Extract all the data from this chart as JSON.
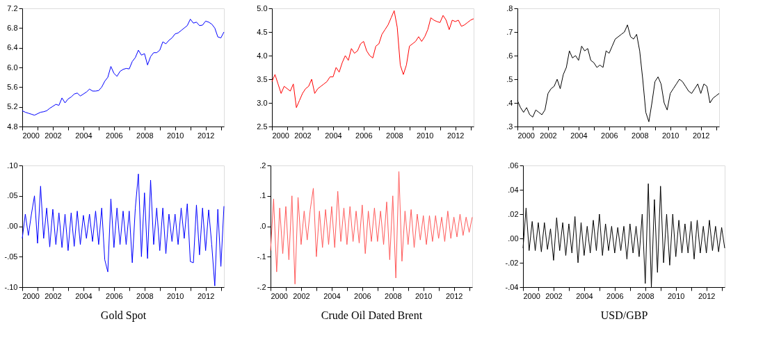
{
  "chart_data": [
    {
      "type": "line",
      "x": [
        2000.0,
        2000.2,
        2000.4,
        2000.6,
        2000.8,
        2001.0,
        2001.2,
        2001.4,
        2001.6,
        2001.8,
        2002.0,
        2002.2,
        2002.4,
        2002.6,
        2002.8,
        2003.0,
        2003.2,
        2003.4,
        2003.6,
        2003.8,
        2004.0,
        2004.2,
        2004.4,
        2004.6,
        2004.8,
        2005.0,
        2005.2,
        2005.4,
        2005.6,
        2005.8,
        2006.0,
        2006.2,
        2006.4,
        2006.6,
        2006.8,
        2007.0,
        2007.2,
        2007.4,
        2007.6,
        2007.8,
        2008.0,
        2008.2,
        2008.4,
        2008.6,
        2008.8,
        2009.0,
        2009.2,
        2009.4,
        2009.6,
        2009.8,
        2010.0,
        2010.2,
        2010.4,
        2010.6,
        2010.8,
        2011.0,
        2011.2,
        2011.4,
        2011.6,
        2011.8,
        2012.0,
        2012.2,
        2012.4,
        2012.6,
        2012.8,
        2013.0,
        2013.2
      ],
      "series": [
        {
          "color": "#0000ff",
          "values": [
            5.12,
            5.09,
            5.07,
            5.05,
            5.03,
            5.06,
            5.09,
            5.1,
            5.12,
            5.17,
            5.21,
            5.25,
            5.23,
            5.38,
            5.28,
            5.36,
            5.4,
            5.46,
            5.48,
            5.42,
            5.46,
            5.5,
            5.56,
            5.52,
            5.52,
            5.53,
            5.6,
            5.72,
            5.8,
            6.02,
            5.88,
            5.82,
            5.92,
            5.96,
            5.98,
            5.97,
            6.12,
            6.2,
            6.35,
            6.25,
            6.28,
            6.05,
            6.22,
            6.3,
            6.3,
            6.35,
            6.52,
            6.48,
            6.55,
            6.6,
            6.68,
            6.7,
            6.75,
            6.8,
            6.85,
            6.98,
            6.9,
            6.92,
            6.85,
            6.86,
            6.94,
            6.92,
            6.88,
            6.8,
            6.62,
            6.6,
            6.72
          ]
        }
      ],
      "xlim": [
        2000,
        2013.2
      ],
      "xticks": [
        2000,
        {
          "value": 2001,
          "label": null
        },
        2002,
        {
          "value": 2003,
          "label": null
        },
        2004,
        {
          "value": 2005,
          "label": null
        },
        2006,
        {
          "value": 2007,
          "label": null
        },
        2008,
        {
          "value": 2009,
          "label": null
        },
        2010,
        {
          "value": 2011,
          "label": null
        },
        2012,
        {
          "value": 2013,
          "label": null
        }
      ],
      "ylim": [
        4.8,
        7.2
      ],
      "yticks": [
        4.8,
        5.2,
        5.6,
        {
          "value": 6,
          "label": "6.0"
        },
        6.4,
        6.8,
        7.2
      ],
      "grid": false
    },
    {
      "type": "line",
      "x": [
        2000.0,
        2000.2,
        2000.4,
        2000.6,
        2000.8,
        2001.0,
        2001.2,
        2001.4,
        2001.6,
        2001.8,
        2002.0,
        2002.2,
        2002.4,
        2002.6,
        2002.8,
        2003.0,
        2003.2,
        2003.4,
        2003.6,
        2003.8,
        2004.0,
        2004.2,
        2004.4,
        2004.6,
        2004.8,
        2005.0,
        2005.2,
        2005.4,
        2005.6,
        2005.8,
        2006.0,
        2006.2,
        2006.4,
        2006.6,
        2006.8,
        2007.0,
        2007.2,
        2007.4,
        2007.6,
        2007.8,
        2008.0,
        2008.2,
        2008.4,
        2008.6,
        2008.8,
        2009.0,
        2009.2,
        2009.4,
        2009.6,
        2009.8,
        2010.0,
        2010.2,
        2010.4,
        2010.6,
        2010.8,
        2011.0,
        2011.2,
        2011.4,
        2011.6,
        2011.8,
        2012.0,
        2012.2,
        2012.4,
        2012.6,
        2012.8,
        2013.0,
        2013.2
      ],
      "series": [
        {
          "color": "#ff0000",
          "values": [
            3.45,
            3.6,
            3.4,
            3.2,
            3.35,
            3.3,
            3.25,
            3.4,
            2.9,
            3.05,
            3.2,
            3.3,
            3.35,
            3.5,
            3.2,
            3.3,
            3.35,
            3.4,
            3.45,
            3.55,
            3.55,
            3.75,
            3.65,
            3.85,
            4.0,
            3.9,
            4.15,
            4.05,
            4.1,
            4.25,
            4.3,
            4.1,
            4.0,
            3.95,
            4.2,
            4.25,
            4.45,
            4.55,
            4.65,
            4.8,
            4.95,
            4.6,
            3.8,
            3.6,
            3.8,
            4.2,
            4.25,
            4.3,
            4.4,
            4.3,
            4.4,
            4.55,
            4.8,
            4.75,
            4.72,
            4.7,
            4.85,
            4.75,
            4.55,
            4.75,
            4.72,
            4.75,
            4.62,
            4.65,
            4.7,
            4.75,
            4.78
          ]
        }
      ],
      "xlim": [
        2000,
        2013.2
      ],
      "xticks": [
        2000,
        {
          "value": 2001,
          "label": null
        },
        2002,
        {
          "value": 2003,
          "label": null
        },
        2004,
        {
          "value": 2005,
          "label": null
        },
        2006,
        {
          "value": 2007,
          "label": null
        },
        2008,
        {
          "value": 2009,
          "label": null
        },
        2010,
        {
          "value": 2011,
          "label": null
        },
        2012,
        {
          "value": 2013,
          "label": null
        }
      ],
      "ylim": [
        2.5,
        5.0
      ],
      "yticks": [
        2.5,
        {
          "value": 3,
          "label": "3.0"
        },
        3.5,
        {
          "value": 4,
          "label": "4.0"
        },
        4.5,
        {
          "value": 5,
          "label": "5.0"
        }
      ],
      "grid": false
    },
    {
      "type": "line",
      "x": [
        2000.0,
        2000.2,
        2000.4,
        2000.6,
        2000.8,
        2001.0,
        2001.2,
        2001.4,
        2001.6,
        2001.8,
        2002.0,
        2002.2,
        2002.4,
        2002.6,
        2002.8,
        2003.0,
        2003.2,
        2003.4,
        2003.6,
        2003.8,
        2004.0,
        2004.2,
        2004.4,
        2004.6,
        2004.8,
        2005.0,
        2005.2,
        2005.4,
        2005.6,
        2005.8,
        2006.0,
        2006.2,
        2006.4,
        2006.6,
        2006.8,
        2007.0,
        2007.2,
        2007.4,
        2007.6,
        2007.8,
        2008.0,
        2008.2,
        2008.4,
        2008.6,
        2008.8,
        2009.0,
        2009.2,
        2009.4,
        2009.6,
        2009.8,
        2010.0,
        2010.2,
        2010.4,
        2010.6,
        2010.8,
        2011.0,
        2011.2,
        2011.4,
        2011.6,
        2011.8,
        2012.0,
        2012.2,
        2012.4,
        2012.6,
        2012.8,
        2013.0,
        2013.2
      ],
      "series": [
        {
          "color": "#000000",
          "values": [
            0.41,
            0.38,
            0.36,
            0.38,
            0.35,
            0.34,
            0.37,
            0.36,
            0.35,
            0.37,
            0.44,
            0.46,
            0.47,
            0.5,
            0.46,
            0.52,
            0.55,
            0.62,
            0.59,
            0.6,
            0.58,
            0.64,
            0.62,
            0.63,
            0.58,
            0.57,
            0.55,
            0.56,
            0.55,
            0.62,
            0.61,
            0.64,
            0.67,
            0.68,
            0.69,
            0.7,
            0.73,
            0.68,
            0.67,
            0.69,
            0.62,
            0.5,
            0.36,
            0.32,
            0.4,
            0.49,
            0.51,
            0.48,
            0.4,
            0.37,
            0.44,
            0.46,
            0.48,
            0.5,
            0.49,
            0.47,
            0.45,
            0.44,
            0.46,
            0.48,
            0.44,
            0.48,
            0.47,
            0.4,
            0.42,
            0.43,
            0.44
          ]
        }
      ],
      "xlim": [
        2000,
        2013.2
      ],
      "xticks": [
        2000,
        {
          "value": 2001,
          "label": null
        },
        2002,
        {
          "value": 2003,
          "label": null
        },
        2004,
        {
          "value": 2005,
          "label": null
        },
        2006,
        {
          "value": 2007,
          "label": null
        },
        2008,
        {
          "value": 2009,
          "label": null
        },
        2010,
        {
          "value": 2011,
          "label": null
        },
        2012,
        {
          "value": 2013,
          "label": null
        }
      ],
      "ylim": [
        0.3,
        0.8
      ],
      "yticks": [
        {
          "value": 0.3,
          "label": ".3"
        },
        {
          "value": 0.4,
          "label": ".4"
        },
        {
          "value": 0.5,
          "label": ".5"
        },
        {
          "value": 0.6,
          "label": ".6"
        },
        {
          "value": 0.7,
          "label": ".7"
        },
        {
          "value": 0.8,
          "label": ".8"
        }
      ],
      "grid": false
    },
    {
      "type": "line",
      "xlabel": "Gold Spot",
      "x": [
        2000.0,
        2000.2,
        2000.4,
        2000.6,
        2000.8,
        2001.0,
        2001.2,
        2001.4,
        2001.6,
        2001.8,
        2002.0,
        2002.2,
        2002.4,
        2002.6,
        2002.8,
        2003.0,
        2003.2,
        2003.4,
        2003.6,
        2003.8,
        2004.0,
        2004.2,
        2004.4,
        2004.6,
        2004.8,
        2005.0,
        2005.2,
        2005.4,
        2005.6,
        2005.8,
        2006.0,
        2006.2,
        2006.4,
        2006.6,
        2006.8,
        2007.0,
        2007.2,
        2007.4,
        2007.6,
        2007.8,
        2008.0,
        2008.2,
        2008.4,
        2008.6,
        2008.8,
        2009.0,
        2009.2,
        2009.4,
        2009.6,
        2009.8,
        2010.0,
        2010.2,
        2010.4,
        2010.6,
        2010.8,
        2011.0,
        2011.2,
        2011.4,
        2011.6,
        2011.8,
        2012.0,
        2012.2,
        2012.4,
        2012.6,
        2012.8,
        2013.0,
        2013.2
      ],
      "series": [
        {
          "color": "#0000ff",
          "values": [
            -0.02,
            0.02,
            -0.015,
            0.02,
            0.05,
            -0.028,
            0.066,
            -0.02,
            0.03,
            -0.034,
            0.028,
            -0.03,
            0.022,
            -0.035,
            0.02,
            -0.04,
            0.022,
            -0.033,
            0.025,
            -0.03,
            0.018,
            -0.02,
            0.02,
            -0.025,
            0.025,
            -0.03,
            0.03,
            -0.055,
            -0.075,
            0.045,
            -0.035,
            0.03,
            -0.03,
            0.025,
            -0.03,
            0.025,
            -0.06,
            0.03,
            0.086,
            -0.05,
            0.055,
            -0.053,
            0.076,
            -0.03,
            0.03,
            -0.04,
            0.03,
            -0.045,
            0.02,
            -0.025,
            0.02,
            -0.03,
            0.03,
            -0.02,
            0.037,
            -0.058,
            -0.06,
            0.035,
            -0.047,
            0.03,
            -0.04,
            0.027,
            -0.03,
            -0.098,
            0.028,
            -0.066,
            0.033
          ]
        }
      ],
      "xlim": [
        2000,
        2013.2
      ],
      "xticks": [
        2000,
        {
          "value": 2001,
          "label": null
        },
        2002,
        {
          "value": 2003,
          "label": null
        },
        2004,
        {
          "value": 2005,
          "label": null
        },
        2006,
        {
          "value": 2007,
          "label": null
        },
        2008,
        {
          "value": 2009,
          "label": null
        },
        2010,
        {
          "value": 2011,
          "label": null
        },
        2012,
        {
          "value": 2013,
          "label": null
        }
      ],
      "ylim": [
        -0.1,
        0.1
      ],
      "yticks": [
        {
          "value": -0.1,
          "label": "-.10"
        },
        {
          "value": -0.05,
          "label": "-.05"
        },
        {
          "value": 0,
          "label": ".00"
        },
        {
          "value": 0.05,
          "label": ".05"
        },
        {
          "value": 0.1,
          "label": ".10"
        }
      ],
      "grid": false
    },
    {
      "type": "line",
      "xlabel": "Crude Oil Dated Brent",
      "x": [
        2000.0,
        2000.2,
        2000.4,
        2000.6,
        2000.8,
        2001.0,
        2001.2,
        2001.4,
        2001.6,
        2001.8,
        2002.0,
        2002.2,
        2002.4,
        2002.6,
        2002.8,
        2003.0,
        2003.2,
        2003.4,
        2003.6,
        2003.8,
        2004.0,
        2004.2,
        2004.4,
        2004.6,
        2004.8,
        2005.0,
        2005.2,
        2005.4,
        2005.6,
        2005.8,
        2006.0,
        2006.2,
        2006.4,
        2006.6,
        2006.8,
        2007.0,
        2007.2,
        2007.4,
        2007.6,
        2007.8,
        2008.0,
        2008.2,
        2008.4,
        2008.6,
        2008.8,
        2009.0,
        2009.2,
        2009.4,
        2009.6,
        2009.8,
        2010.0,
        2010.2,
        2010.4,
        2010.6,
        2010.8,
        2011.0,
        2011.2,
        2011.4,
        2011.6,
        2011.8,
        2012.0,
        2012.2,
        2012.4,
        2012.6,
        2012.8,
        2013.0,
        2013.2
      ],
      "series": [
        {
          "color": "#ff5a5a",
          "values": [
            -0.08,
            0.09,
            -0.15,
            0.06,
            -0.09,
            0.065,
            -0.11,
            0.1,
            -0.19,
            0.095,
            -0.06,
            0.05,
            -0.045,
            0.055,
            0.125,
            -0.1,
            0.05,
            -0.07,
            0.055,
            -0.06,
            0.065,
            -0.07,
            0.115,
            -0.05,
            0.06,
            -0.06,
            0.065,
            -0.05,
            0.05,
            -0.055,
            0.07,
            -0.09,
            0.05,
            -0.05,
            0.06,
            -0.05,
            0.05,
            -0.06,
            0.08,
            -0.11,
            0.1,
            -0.17,
            0.18,
            -0.115,
            0.05,
            -0.06,
            0.055,
            -0.07,
            0.04,
            -0.045,
            0.035,
            -0.06,
            0.035,
            -0.05,
            0.035,
            -0.04,
            0.03,
            -0.05,
            0.05,
            -0.04,
            0.03,
            -0.035,
            0.04,
            -0.03,
            0.03,
            -0.02,
            0.03
          ]
        }
      ],
      "xlim": [
        2000,
        2013.2
      ],
      "xticks": [
        2000,
        {
          "value": 2001,
          "label": null
        },
        2002,
        {
          "value": 2003,
          "label": null
        },
        2004,
        {
          "value": 2005,
          "label": null
        },
        2006,
        {
          "value": 2007,
          "label": null
        },
        2008,
        {
          "value": 2009,
          "label": null
        },
        2010,
        {
          "value": 2011,
          "label": null
        },
        2012,
        {
          "value": 2013,
          "label": null
        }
      ],
      "ylim": [
        -0.2,
        0.2
      ],
      "yticks": [
        {
          "value": -0.2,
          "label": "-.2"
        },
        {
          "value": -0.1,
          "label": "-.1"
        },
        {
          "value": 0,
          "label": ".0"
        },
        {
          "value": 0.1,
          "label": ".1"
        },
        {
          "value": 0.2,
          "label": ".2"
        }
      ],
      "grid": false
    },
    {
      "type": "line",
      "xlabel": "USD/GBP",
      "x": [
        2000.0,
        2000.2,
        2000.4,
        2000.6,
        2000.8,
        2001.0,
        2001.2,
        2001.4,
        2001.6,
        2001.8,
        2002.0,
        2002.2,
        2002.4,
        2002.6,
        2002.8,
        2003.0,
        2003.2,
        2003.4,
        2003.6,
        2003.8,
        2004.0,
        2004.2,
        2004.4,
        2004.6,
        2004.8,
        2005.0,
        2005.2,
        2005.4,
        2005.6,
        2005.8,
        2006.0,
        2006.2,
        2006.4,
        2006.6,
        2006.8,
        2007.0,
        2007.2,
        2007.4,
        2007.6,
        2007.8,
        2008.0,
        2008.2,
        2008.4,
        2008.6,
        2008.8,
        2009.0,
        2009.2,
        2009.4,
        2009.6,
        2009.8,
        2010.0,
        2010.2,
        2010.4,
        2010.6,
        2010.8,
        2011.0,
        2011.2,
        2011.4,
        2011.6,
        2011.8,
        2012.0,
        2012.2,
        2012.4,
        2012.6,
        2012.8,
        2013.0,
        2013.2
      ],
      "series": [
        {
          "color": "#000000",
          "values": [
            -0.008,
            0.025,
            -0.01,
            0.014,
            -0.01,
            0.013,
            -0.011,
            0.013,
            -0.009,
            0.008,
            -0.018,
            0.017,
            -0.01,
            0.013,
            -0.014,
            0.012,
            -0.012,
            0.018,
            -0.02,
            0.013,
            -0.014,
            0.01,
            -0.012,
            0.015,
            -0.01,
            0.02,
            -0.014,
            0.012,
            -0.01,
            0.01,
            -0.012,
            0.009,
            -0.01,
            0.01,
            -0.017,
            0.012,
            -0.012,
            0.01,
            -0.015,
            0.02,
            -0.037,
            0.045,
            -0.04,
            0.032,
            -0.028,
            0.043,
            -0.02,
            0.02,
            -0.022,
            0.02,
            -0.015,
            0.015,
            -0.012,
            0.012,
            -0.012,
            0.014,
            -0.017,
            0.015,
            -0.012,
            0.01,
            -0.012,
            0.015,
            -0.01,
            0.01,
            -0.011,
            0.009,
            -0.008
          ]
        }
      ],
      "xlim": [
        2000,
        2013.2
      ],
      "xticks": [
        2000,
        {
          "value": 2001,
          "label": null
        },
        2002,
        {
          "value": 2003,
          "label": null
        },
        2004,
        {
          "value": 2005,
          "label": null
        },
        2006,
        {
          "value": 2007,
          "label": null
        },
        2008,
        {
          "value": 2009,
          "label": null
        },
        2010,
        {
          "value": 2011,
          "label": null
        },
        2012,
        {
          "value": 2013,
          "label": null
        }
      ],
      "ylim": [
        -0.04,
        0.06
      ],
      "yticks": [
        {
          "value": -0.04,
          "label": "-.04"
        },
        {
          "value": -0.02,
          "label": "-.02"
        },
        {
          "value": 0,
          "label": ".00"
        },
        {
          "value": 0.02,
          "label": ".02"
        },
        {
          "value": 0.04,
          "label": ".04"
        },
        {
          "value": 0.06,
          "label": ".06"
        }
      ],
      "grid": false
    }
  ]
}
